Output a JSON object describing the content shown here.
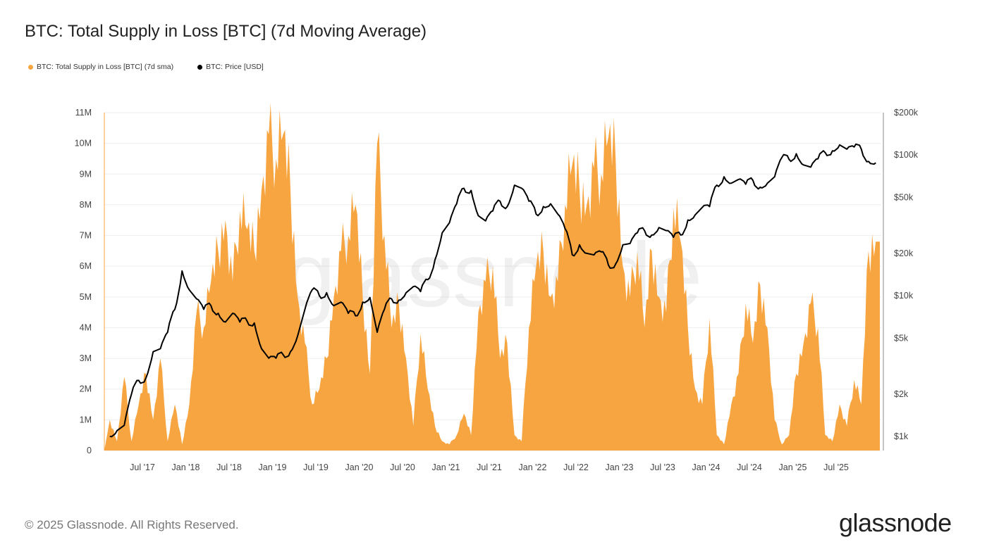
{
  "title": "BTC: Total Supply in Loss [BTC] (7d Moving Average)",
  "footer": "© 2025 Glassnode. All Rights Reserved.",
  "logo": "glassnode",
  "watermark": "glassnode",
  "colors": {
    "supply": "#f7a541",
    "price": "#000000",
    "grid": "#eeeeee"
  },
  "chart_data": {
    "type": "area",
    "title": "BTC: Total Supply in Loss [BTC] (7d Moving Average)",
    "legend": {
      "placement": "top-left",
      "entries": [
        "BTC: Total Supply in Loss [BTC] (7d sma)",
        "BTC: Price [USD]"
      ]
    },
    "grid": true,
    "x_ticks": [
      "Jul '17",
      "Jan '18",
      "Jul '18",
      "Jan '19",
      "Jul '19",
      "Jan '20",
      "Jul '20",
      "Jan '21",
      "Jul '21",
      "Jan '22",
      "Jul '22",
      "Jan '23",
      "Jul '23",
      "Jan '24",
      "Jul '24",
      "Jan '25",
      "Jul '25"
    ],
    "x_tick_dates": [
      "2017-07",
      "2018-01",
      "2018-07",
      "2019-01",
      "2019-07",
      "2020-01",
      "2020-07",
      "2021-01",
      "2021-07",
      "2022-01",
      "2022-07",
      "2023-01",
      "2023-07",
      "2024-01",
      "2024-07",
      "2025-01",
      "2025-07"
    ],
    "y_left": {
      "ticks": [
        "0",
        "1M",
        "2M",
        "3M",
        "4M",
        "5M",
        "6M",
        "7M",
        "8M",
        "9M",
        "10M",
        "11M"
      ],
      "range": [
        0,
        11000000
      ],
      "scale": "linear"
    },
    "y_right": {
      "ticks": [
        "$1k",
        "$2k",
        "$5k",
        "$10k",
        "$20k",
        "$50k",
        "$100k",
        "$200k"
      ],
      "tick_values": [
        1000,
        2000,
        5000,
        10000,
        20000,
        50000,
        100000,
        200000
      ],
      "range": [
        794,
        200000
      ],
      "scale": "log"
    },
    "x": [
      "2017-02",
      "2017-03",
      "2017-04",
      "2017-05",
      "2017-06",
      "2017-07",
      "2017-08",
      "2017-09",
      "2017-10",
      "2017-11",
      "2017-12",
      "2018-01",
      "2018-02",
      "2018-03",
      "2018-04",
      "2018-05",
      "2018-06",
      "2018-07",
      "2018-08",
      "2018-09",
      "2018-10",
      "2018-11",
      "2018-12",
      "2019-01",
      "2019-02",
      "2019-03",
      "2019-04",
      "2019-05",
      "2019-06",
      "2019-07",
      "2019-08",
      "2019-09",
      "2019-10",
      "2019-11",
      "2019-12",
      "2020-01",
      "2020-02",
      "2020-03",
      "2020-04",
      "2020-05",
      "2020-06",
      "2020-07",
      "2020-08",
      "2020-09",
      "2020-10",
      "2020-11",
      "2020-12",
      "2021-01",
      "2021-02",
      "2021-03",
      "2021-04",
      "2021-05",
      "2021-06",
      "2021-07",
      "2021-08",
      "2021-09",
      "2021-10",
      "2021-11",
      "2021-12",
      "2022-01",
      "2022-02",
      "2022-03",
      "2022-04",
      "2022-05",
      "2022-06",
      "2022-07",
      "2022-08",
      "2022-09",
      "2022-10",
      "2022-11",
      "2022-12",
      "2023-01",
      "2023-02",
      "2023-03",
      "2023-04",
      "2023-05",
      "2023-06",
      "2023-07",
      "2023-08",
      "2023-09",
      "2023-10",
      "2023-11",
      "2023-12",
      "2024-01",
      "2024-02",
      "2024-03",
      "2024-04",
      "2024-05",
      "2024-06",
      "2024-07",
      "2024-08",
      "2024-09",
      "2024-10",
      "2024-11",
      "2024-12",
      "2025-01",
      "2025-02",
      "2025-03",
      "2025-04",
      "2025-05",
      "2025-06",
      "2025-07",
      "2025-08",
      "2025-09",
      "2025-10",
      "2025-11",
      "2025-12"
    ],
    "series": [
      {
        "name": "BTC: Total Supply in Loss [BTC] (7d sma)",
        "axis": "left",
        "type": "area",
        "values": [
          1000000,
          300000,
          2400000,
          300000,
          1500000,
          2500000,
          1000000,
          3000000,
          300000,
          1500000,
          200000,
          1500000,
          4500000,
          4000000,
          5500000,
          6500000,
          7500000,
          5500000,
          7800000,
          7200000,
          6500000,
          8500000,
          10300000,
          9500000,
          10300000,
          8500000,
          5000000,
          3500000,
          1500000,
          2000000,
          3000000,
          5000000,
          6500000,
          7000000,
          8000000,
          5000000,
          2500000,
          10000000,
          7000000,
          4000000,
          4800000,
          3000000,
          800000,
          3800000,
          2000000,
          800000,
          300000,
          200000,
          500000,
          1200000,
          500000,
          4500000,
          5500000,
          6000000,
          3000000,
          3500000,
          500000,
          300000,
          4000000,
          6000000,
          6500000,
          5000000,
          5500000,
          8000000,
          9300000,
          8500000,
          8000000,
          9200000,
          9000000,
          10200000,
          9500000,
          6000000,
          5000000,
          6500000,
          4000000,
          6500000,
          5000000,
          4500000,
          7900000,
          6800000,
          4000000,
          2000000,
          1500000,
          4300000,
          500000,
          200000,
          1500000,
          2500000,
          4800000,
          3500000,
          5400000,
          4000000,
          1000000,
          200000,
          500000,
          2500000,
          3500000,
          4800000,
          4000000,
          500000,
          300000,
          1500000,
          800000,
          2300000,
          1500000,
          6500000,
          6800000
        ]
      },
      {
        "name": "BTC: Price [USD]",
        "axis": "right",
        "type": "line",
        "values": [
          1000,
          1100,
          1200,
          2000,
          2500,
          2600,
          4000,
          4200,
          5500,
          8000,
          15000,
          11000,
          9500,
          8000,
          8500,
          7500,
          6500,
          7500,
          6500,
          6600,
          6400,
          4200,
          3600,
          3600,
          3800,
          4000,
          5200,
          8000,
          11000,
          10000,
          10500,
          8500,
          9000,
          7500,
          7200,
          9000,
          9700,
          5500,
          8000,
          9500,
          9300,
          10500,
          11600,
          10700,
          13000,
          18000,
          28000,
          33000,
          45000,
          58000,
          56000,
          37000,
          34000,
          40000,
          47000,
          43000,
          61000,
          58000,
          47000,
          38000,
          43000,
          45000,
          38000,
          30000,
          19500,
          23000,
          20000,
          19500,
          20500,
          16500,
          16800,
          23000,
          23500,
          28000,
          29000,
          27000,
          30500,
          29000,
          26000,
          27000,
          34500,
          37500,
          42500,
          43000,
          61000,
          70000,
          63000,
          67000,
          62000,
          66000,
          59000,
          63000,
          70000,
          96000,
          93000,
          102000,
          85000,
          82000,
          94000,
          104000,
          107000,
          118000,
          110000,
          114000,
          110000,
          90000,
          88000
        ]
      }
    ]
  }
}
